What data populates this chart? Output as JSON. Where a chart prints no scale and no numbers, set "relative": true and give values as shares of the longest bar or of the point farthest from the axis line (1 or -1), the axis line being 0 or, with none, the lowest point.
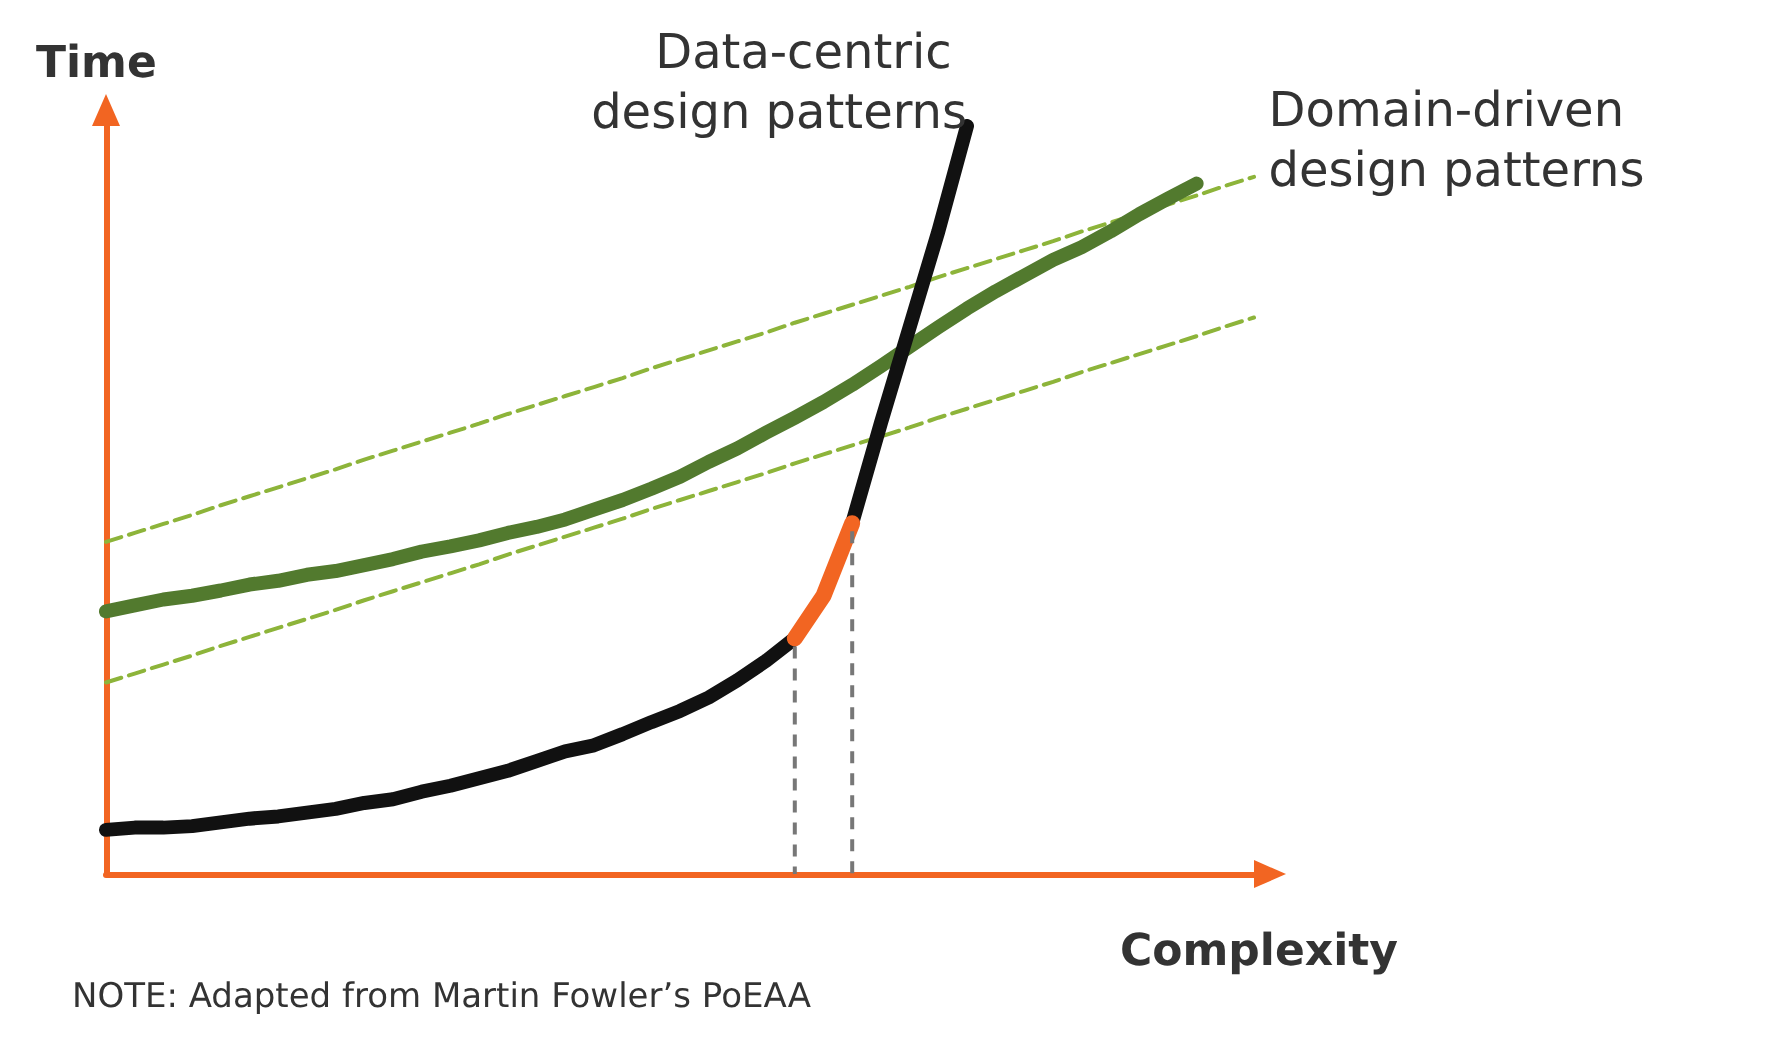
{
  "chart_data": {
    "type": "line",
    "relative": true,
    "xlabel": "Complexity",
    "ylabel": "Time",
    "legend": false,
    "grid": false,
    "marker": "none",
    "categories": [
      null,
      null,
      null,
      null,
      null,
      null,
      null,
      null,
      null,
      null,
      null,
      null,
      null,
      null,
      null,
      null,
      null,
      null,
      null,
      null,
      null,
      null,
      null,
      null,
      null,
      null,
      null,
      null,
      null,
      null,
      null,
      null,
      null,
      null,
      null,
      null,
      null,
      null,
      null,
      null,
      null
    ],
    "series": [
      {
        "color": "#8db43a",
        "line_style": "dashed",
        "values": [
          0.444,
          0.456,
          0.468,
          0.48,
          0.493,
          0.505,
          0.517,
          0.529,
          0.541,
          0.554,
          0.566,
          0.578,
          0.59,
          0.602,
          0.615,
          0.627,
          0.639,
          0.651,
          0.663,
          0.676,
          0.688,
          0.7,
          0.712,
          0.724,
          0.737,
          0.749,
          0.761,
          0.773,
          0.785,
          0.798,
          0.81,
          0.822,
          0.834,
          0.846,
          0.859,
          0.871,
          0.883,
          0.895,
          0.907,
          0.92,
          0.932
        ]
      },
      {
        "color": "#8db43a",
        "line_style": "dashed",
        "values": [
          0.256,
          0.268,
          0.28,
          0.292,
          0.305,
          0.317,
          0.329,
          0.341,
          0.353,
          0.366,
          0.378,
          0.39,
          0.402,
          0.414,
          0.427,
          0.439,
          0.451,
          0.463,
          0.475,
          0.488,
          0.5,
          0.512,
          0.524,
          0.536,
          0.549,
          0.561,
          0.573,
          0.585,
          0.597,
          0.61,
          0.622,
          0.634,
          0.646,
          0.658,
          0.671,
          0.683,
          0.695,
          0.707,
          0.719,
          0.732,
          0.744
        ]
      },
      {
        "name": "Domain-driven design patterns",
        "color": "#527a2e",
        "line_style": "solid",
        "values": [
          0.351,
          0.359,
          0.367,
          0.372,
          0.379,
          0.387,
          0.392,
          0.4,
          0.405,
          0.413,
          0.421,
          0.431,
          0.438,
          0.446,
          0.456,
          0.464,
          0.474,
          0.487,
          0.5,
          0.515,
          0.531,
          0.551,
          0.569,
          0.59,
          0.61,
          0.631,
          0.654,
          0.679,
          0.705,
          0.731,
          0.756,
          0.779,
          0.8,
          0.821,
          0.838,
          0.859,
          0.882,
          0.903,
          0.923,
          null,
          null
        ]
      },
      {
        "name": "Data-centric design patterns",
        "color": "#111111",
        "line_style": "solid",
        "values": [
          0.059,
          0.062,
          0.062,
          0.064,
          0.069,
          0.074,
          0.077,
          0.082,
          0.087,
          0.095,
          0.1,
          0.11,
          0.118,
          0.128,
          0.138,
          0.151,
          0.164,
          0.172,
          0.187,
          0.203,
          0.218,
          0.236,
          0.259,
          0.285,
          0.315,
          null,
          0.469,
          0.603,
          0.731,
          0.859,
          1,
          null,
          null,
          null,
          null,
          null,
          null,
          null,
          null,
          null,
          null
        ]
      },
      {
        "color": "#f26522",
        "line_style": "solid",
        "values": [
          null,
          null,
          null,
          null,
          null,
          null,
          null,
          null,
          null,
          null,
          null,
          null,
          null,
          null,
          null,
          null,
          null,
          null,
          null,
          null,
          null,
          null,
          null,
          null,
          0.315,
          0.372,
          0.469,
          null,
          null,
          null,
          null,
          null,
          null,
          null,
          null,
          null,
          null,
          null,
          null,
          null,
          null
        ]
      }
    ],
    "annotations": [
      "NOTE: Adapted from Martin Fowler’s PoEAA"
    ]
  }
}
